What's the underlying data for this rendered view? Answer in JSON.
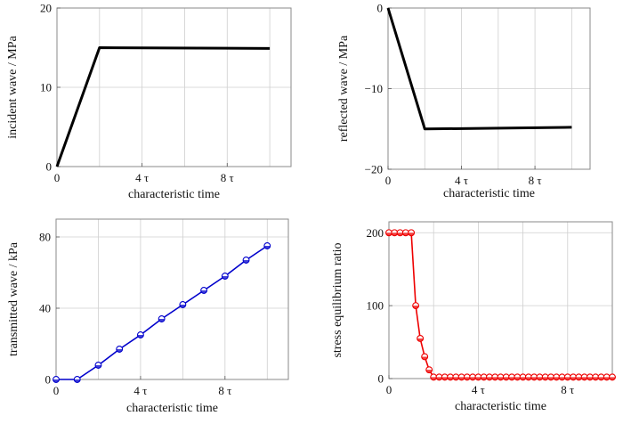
{
  "chart_data": [
    {
      "type": "line",
      "xlabel": "characteristic time",
      "ylabel": "incident wave / MPa",
      "xlim": [
        0,
        11
      ],
      "ylim": [
        0,
        20
      ],
      "xticks": [
        {
          "v": 0,
          "label": "0"
        },
        {
          "v": 4,
          "label": "4 τ"
        },
        {
          "v": 8,
          "label": "8 τ"
        }
      ],
      "yticks": [
        {
          "v": 0,
          "label": "0"
        },
        {
          "v": 10,
          "label": "10"
        },
        {
          "v": 20,
          "label": "20"
        }
      ],
      "grid": true,
      "color": "#000000",
      "series": [
        {
          "x": [
            0,
            2,
            10
          ],
          "y": [
            0,
            15,
            14.9
          ],
          "marker": "none"
        }
      ]
    },
    {
      "type": "line",
      "xlabel": "characteristic time",
      "ylabel": "reflected wave / MPa",
      "xlim": [
        0,
        11
      ],
      "ylim": [
        -20,
        0
      ],
      "xticks": [
        {
          "v": 0,
          "label": "0"
        },
        {
          "v": 4,
          "label": "4 τ"
        },
        {
          "v": 8,
          "label": "8 τ"
        }
      ],
      "yticks": [
        {
          "v": 0,
          "label": "0"
        },
        {
          "v": -10,
          "label": "−10"
        },
        {
          "v": -20,
          "label": "−20"
        }
      ],
      "grid": true,
      "color": "#000000",
      "series": [
        {
          "x": [
            0,
            2,
            10
          ],
          "y": [
            0,
            -15,
            -14.8
          ],
          "marker": "none"
        }
      ]
    },
    {
      "type": "line",
      "xlabel": "characteristic time",
      "ylabel": "transmitted wave / kPa",
      "xlim": [
        0,
        11
      ],
      "ylim": [
        0,
        90
      ],
      "xticks": [
        {
          "v": 0,
          "label": "0"
        },
        {
          "v": 4,
          "label": "4 τ"
        },
        {
          "v": 8,
          "label": "8 τ"
        }
      ],
      "yticks": [
        {
          "v": 0,
          "label": "0"
        },
        {
          "v": 40,
          "label": "40"
        },
        {
          "v": 80,
          "label": "80"
        }
      ],
      "grid": true,
      "color": "#0000cc",
      "series": [
        {
          "x": [
            0,
            1,
            2,
            3,
            4,
            5,
            6,
            7,
            8,
            9,
            10
          ],
          "y": [
            0,
            0,
            8,
            17,
            25,
            34,
            42,
            50,
            58,
            67,
            75
          ],
          "marker": "circle"
        }
      ]
    },
    {
      "type": "line",
      "xlabel": "characteristic time",
      "ylabel": "stress equilibrium ratio",
      "xlim": [
        0,
        10
      ],
      "ylim": [
        0,
        215
      ],
      "xticks": [
        {
          "v": 0,
          "label": "0"
        },
        {
          "v": 4,
          "label": "4 τ"
        },
        {
          "v": 8,
          "label": "8 τ"
        }
      ],
      "yticks": [
        {
          "v": 0,
          "label": "0"
        },
        {
          "v": 100,
          "label": "100"
        },
        {
          "v": 200,
          "label": "200"
        }
      ],
      "grid": true,
      "color": "#ee0000",
      "series": [
        {
          "x": [
            0,
            0.25,
            0.5,
            0.75,
            1,
            1.2,
            1.4,
            1.6,
            1.8,
            2,
            2.25,
            2.5,
            2.75,
            3,
            3.25,
            3.5,
            3.75,
            4,
            4.25,
            4.5,
            4.75,
            5,
            5.25,
            5.5,
            5.75,
            6,
            6.25,
            6.5,
            6.75,
            7,
            7.25,
            7.5,
            7.75,
            8,
            8.25,
            8.5,
            8.75,
            9,
            9.25,
            9.5,
            9.75,
            10
          ],
          "y": [
            200,
            200,
            200,
            200,
            200,
            100,
            55,
            30,
            12,
            2,
            2,
            2,
            2,
            2,
            2,
            2,
            2,
            2,
            2,
            2,
            2,
            2,
            2,
            2,
            2,
            2,
            2,
            2,
            2,
            2,
            2,
            2,
            2,
            2,
            2,
            2,
            2,
            2,
            2,
            2,
            2,
            2
          ],
          "marker": "circle"
        }
      ]
    }
  ]
}
